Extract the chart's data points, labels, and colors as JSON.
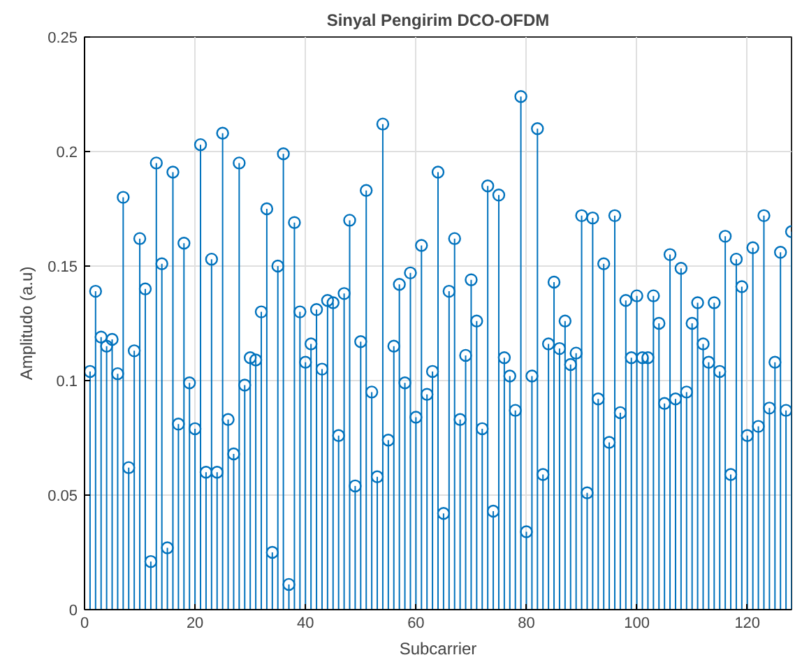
{
  "chart_data": {
    "type": "lollipop",
    "title": "Sinyal Pengirim DCO-OFDM",
    "xlabel": "Subcarrier",
    "ylabel": "Amplitudo (a.u)",
    "x": [
      1,
      2,
      3,
      4,
      5,
      6,
      7,
      8,
      9,
      10,
      11,
      12,
      13,
      14,
      15,
      16,
      17,
      18,
      19,
      20,
      21,
      22,
      23,
      24,
      25,
      26,
      27,
      28,
      29,
      30,
      31,
      32,
      33,
      34,
      35,
      36,
      37,
      38,
      39,
      40,
      41,
      42,
      43,
      44,
      45,
      46,
      47,
      48,
      49,
      50,
      51,
      52,
      53,
      54,
      55,
      56,
      57,
      58,
      59,
      60,
      61,
      62,
      63,
      64,
      65,
      66,
      67,
      68,
      69,
      70,
      71,
      72,
      73,
      74,
      75,
      76,
      77,
      78,
      79,
      80,
      81,
      82,
      83,
      84,
      85,
      86,
      87,
      88,
      89,
      90,
      91,
      92,
      93,
      94,
      95,
      96,
      97,
      98,
      99,
      100,
      101,
      102,
      103,
      104,
      105,
      106,
      107,
      108,
      109,
      110,
      111,
      112,
      113,
      114,
      115,
      116,
      117,
      118,
      119,
      120,
      121,
      122,
      123,
      124,
      125,
      126,
      127,
      128
    ],
    "series": [
      {
        "color": "#0072bd",
        "values": [
          0.104,
          0.139,
          0.119,
          0.115,
          0.118,
          0.103,
          0.18,
          0.062,
          0.113,
          0.162,
          0.14,
          0.021,
          0.195,
          0.151,
          0.027,
          0.191,
          0.081,
          0.16,
          0.099,
          0.079,
          0.203,
          0.06,
          0.153,
          0.06,
          0.208,
          0.083,
          0.068,
          0.195,
          0.098,
          0.11,
          0.109,
          0.13,
          0.175,
          0.025,
          0.15,
          0.199,
          0.011,
          0.169,
          0.13,
          0.108,
          0.116,
          0.131,
          0.105,
          0.135,
          0.134,
          0.076,
          0.138,
          0.17,
          0.054,
          0.117,
          0.183,
          0.095,
          0.058,
          0.212,
          0.074,
          0.115,
          0.142,
          0.099,
          0.147,
          0.084,
          0.159,
          0.094,
          0.104,
          0.191,
          0.042,
          0.139,
          0.162,
          0.083,
          0.111,
          0.144,
          0.126,
          0.079,
          0.185,
          0.043,
          0.181,
          0.11,
          0.102,
          0.087,
          0.224,
          0.034,
          0.102,
          0.21,
          0.059,
          0.116,
          0.143,
          0.114,
          0.126,
          0.107,
          0.112,
          0.172,
          0.051,
          0.171,
          0.092,
          0.151,
          0.073,
          0.172,
          0.086,
          0.135,
          0.11,
          0.137,
          0.11,
          0.11,
          0.137,
          0.125,
          0.09,
          0.155,
          0.092,
          0.149,
          0.095,
          0.125,
          0.134,
          0.116,
          0.108,
          0.134,
          0.104,
          0.163,
          0.059,
          0.153,
          0.141,
          0.076,
          0.158,
          0.08,
          0.172,
          0.088,
          0.108,
          0.156,
          0.087,
          0.165
        ]
      }
    ],
    "xlim": [
      0,
      128
    ],
    "xticks": [
      0,
      20,
      40,
      60,
      80,
      100,
      120
    ],
    "ylim": [
      0,
      0.25
    ],
    "yticks": [
      0,
      0.05,
      0.1,
      0.15,
      0.2,
      0.25
    ],
    "grid": true,
    "marker": "circle"
  }
}
